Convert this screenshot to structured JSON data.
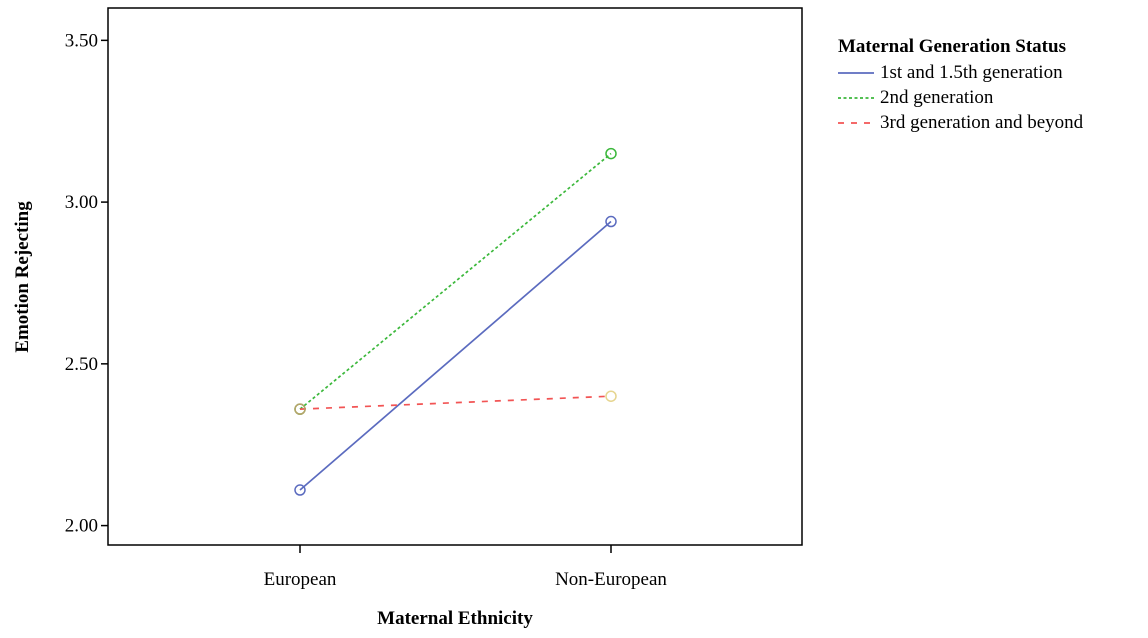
{
  "chart_data": {
    "type": "line",
    "categories": [
      "European",
      "Non-European"
    ],
    "xlabel": "Maternal Ethnicity",
    "ylabel": "Emotion Rejecting",
    "ylim": [
      1.94,
      3.6
    ],
    "yticks": [
      2.0,
      2.5,
      3.0,
      3.5
    ],
    "ytick_labels": [
      "2.00",
      "2.50",
      "3.00",
      "3.50"
    ],
    "grid": false,
    "legend": {
      "title": "Maternal Generation Status",
      "placement": "right"
    },
    "series": [
      {
        "name": "1st and 1.5th generation",
        "values": [
          2.11,
          2.94
        ],
        "color": "#5b6bbf",
        "line_style": "solid",
        "marker_colors": [
          "#5b6bbf",
          "#5b6bbf"
        ]
      },
      {
        "name": "2nd generation",
        "values": [
          2.36,
          3.15
        ],
        "color": "#3cb83c",
        "line_style": "dotted",
        "marker_colors": [
          "#3cb83c",
          "#3cb83c"
        ]
      },
      {
        "name": "3rd generation and beyond",
        "values": [
          2.36,
          2.4
        ],
        "color": "#f25454",
        "line_style": "dashed",
        "marker_colors": [
          "#b8a36a",
          "#e6d58f"
        ]
      }
    ]
  }
}
